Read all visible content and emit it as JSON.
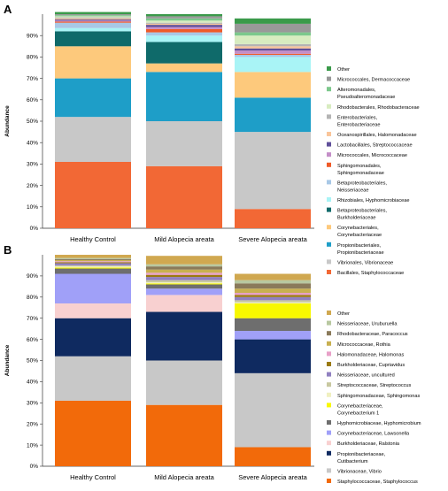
{
  "chart_data": [
    {
      "type": "bar",
      "stacked": true,
      "panel_label": "A",
      "ylabel": "Abundance",
      "ylim": [
        0,
        100
      ],
      "ytick_labels": [
        "0%",
        "10%",
        "20%",
        "30%",
        "40%",
        "50%",
        "60%",
        "70%",
        "80%",
        "90%"
      ],
      "categories": [
        "Healthy Control",
        "Mild Alopecia areata",
        "Severe Alopecia areata"
      ],
      "legend_position": "right",
      "series": [
        {
          "name": "Bacillales, Staphylococcaceae",
          "color": "#f26835",
          "values": [
            31,
            29,
            9
          ]
        },
        {
          "name": "Vibrionales, Vibrionaceae",
          "color": "#c8c8c8",
          "values": [
            21,
            21,
            36
          ]
        },
        {
          "name": "Propionibacteriales, Propionibacteriaceae",
          "color": "#1e9ec8",
          "values": [
            18,
            23,
            16
          ]
        },
        {
          "name": "Corynebacteriales, Corynebacteriaceae",
          "color": "#fdc97c",
          "values": [
            15,
            4,
            12
          ]
        },
        {
          "name": "Betaproteobacteriales, Burkholderiaceae",
          "color": "#0f6a6a",
          "values": [
            7,
            10,
            0
          ]
        },
        {
          "name": "Rhizobiales, Hyphomicrobiaceae",
          "color": "#a9f4f6",
          "values": [
            1.5,
            3,
            7
          ]
        },
        {
          "name": "Betaproteobacteriales, Neisseriaceae",
          "color": "#a8c8e6",
          "values": [
            2.5,
            1.5,
            1
          ]
        },
        {
          "name": "Sphingomonadales, Sphingomonadaceae",
          "color": "#ef5a28",
          "values": [
            0.5,
            1.5,
            0.5
          ]
        },
        {
          "name": "Micrococcales, Micrococcaceae",
          "color": "#c48ec8",
          "values": [
            0.5,
            1,
            1.5
          ]
        },
        {
          "name": "Lactobacillales, Streptococcaceae",
          "color": "#5f4f9a",
          "values": [
            0.5,
            1,
            1
          ]
        },
        {
          "name": "Oceanospirillales, Halomonadaceae",
          "color": "#f9c59a",
          "values": [
            0.5,
            0.5,
            1
          ]
        },
        {
          "name": "Enterobacteriales, Enterobacteriaceae",
          "color": "#b4b4b4",
          "values": [
            0.5,
            0.5,
            1
          ]
        },
        {
          "name": "Rhodobacterales, Rhodobacteraceae",
          "color": "#d8ecc0",
          "values": [
            0.5,
            1,
            4
          ]
        },
        {
          "name": "Alteromonadales, Pseudoalteromonadaceae",
          "color": "#7cc88c",
          "values": [
            0.5,
            1,
            1.5
          ]
        },
        {
          "name": "Micrococcales, Dermacoccaceae",
          "color": "#999999",
          "values": [
            0.5,
            1,
            4
          ]
        },
        {
          "name": "Other",
          "color": "#3a9a4a",
          "values": [
            1,
            1,
            2.5
          ]
        }
      ]
    },
    {
      "type": "bar",
      "stacked": true,
      "panel_label": "B",
      "ylabel": "Abundance",
      "ylim": [
        0,
        100
      ],
      "ytick_labels": [
        "0%",
        "10%",
        "20%",
        "30%",
        "40%",
        "50%",
        "60%",
        "70%",
        "80%",
        "90%"
      ],
      "categories": [
        "Healthy Control",
        "Mild Alopecia areata",
        "Severe Alopecia areata"
      ],
      "legend_position": "right",
      "series": [
        {
          "name": "Staphylococcaceae, Staphylococcus",
          "color": "#f26a0a",
          "values": [
            31,
            29,
            9
          ]
        },
        {
          "name": "Vibrionaceae, Vibrio",
          "color": "#c8c8c8",
          "values": [
            21,
            21,
            35
          ]
        },
        {
          "name": "Propionibacteriaceae, Cutibacterium",
          "color": "#0f2a60",
          "values": [
            18,
            23,
            16
          ]
        },
        {
          "name": "Burkholderiaceae, Ralstonia",
          "color": "#f8d0d0",
          "values": [
            7,
            8,
            0
          ]
        },
        {
          "name": "Corynebacteriaceae, Lawsonella",
          "color": "#a0a0f8",
          "values": [
            14,
            3,
            4
          ]
        },
        {
          "name": "Hyphomicrobiaceae, Hyphomicrobium",
          "color": "#6e6e6e",
          "values": [
            2.5,
            2,
            6
          ]
        },
        {
          "name": "Corynebacteriaceae, Corynebacterium 1",
          "color": "#f8f800",
          "values": [
            0.5,
            0.5,
            7
          ]
        },
        {
          "name": "Sphingomonadaceae, Sphingomonas",
          "color": "#f0f0c0",
          "values": [
            0.5,
            0.5,
            0.5
          ]
        },
        {
          "name": "Streptococcaceae, Streptococcus",
          "color": "#c8c8a0",
          "values": [
            0.5,
            1,
            1
          ]
        },
        {
          "name": "Neisseriaceae, uncultured",
          "color": "#9080c0",
          "values": [
            1,
            1.5,
            1.5
          ]
        },
        {
          "name": "Burkholderiaceae, Cupriavidus",
          "color": "#9a7a10",
          "values": [
            0.5,
            1,
            1
          ]
        },
        {
          "name": "Halomonadaceae, Halomonas",
          "color": "#e8a0c8",
          "values": [
            0.5,
            1,
            1
          ]
        },
        {
          "name": "Micrococcaceae, Rothia",
          "color": "#c8b050",
          "values": [
            0.5,
            1.5,
            2
          ]
        },
        {
          "name": "Rhodobacteraceae, Paracoccus",
          "color": "#8a7a5a",
          "values": [
            0.5,
            1.5,
            2.5
          ]
        },
        {
          "name": "Neisseriaceae, Uruburuella",
          "color": "#b8c8a0",
          "values": [
            0.5,
            1,
            1.5
          ]
        },
        {
          "name": "Other",
          "color": "#d0a850",
          "values": [
            1.5,
            4,
            3
          ]
        }
      ]
    }
  ]
}
